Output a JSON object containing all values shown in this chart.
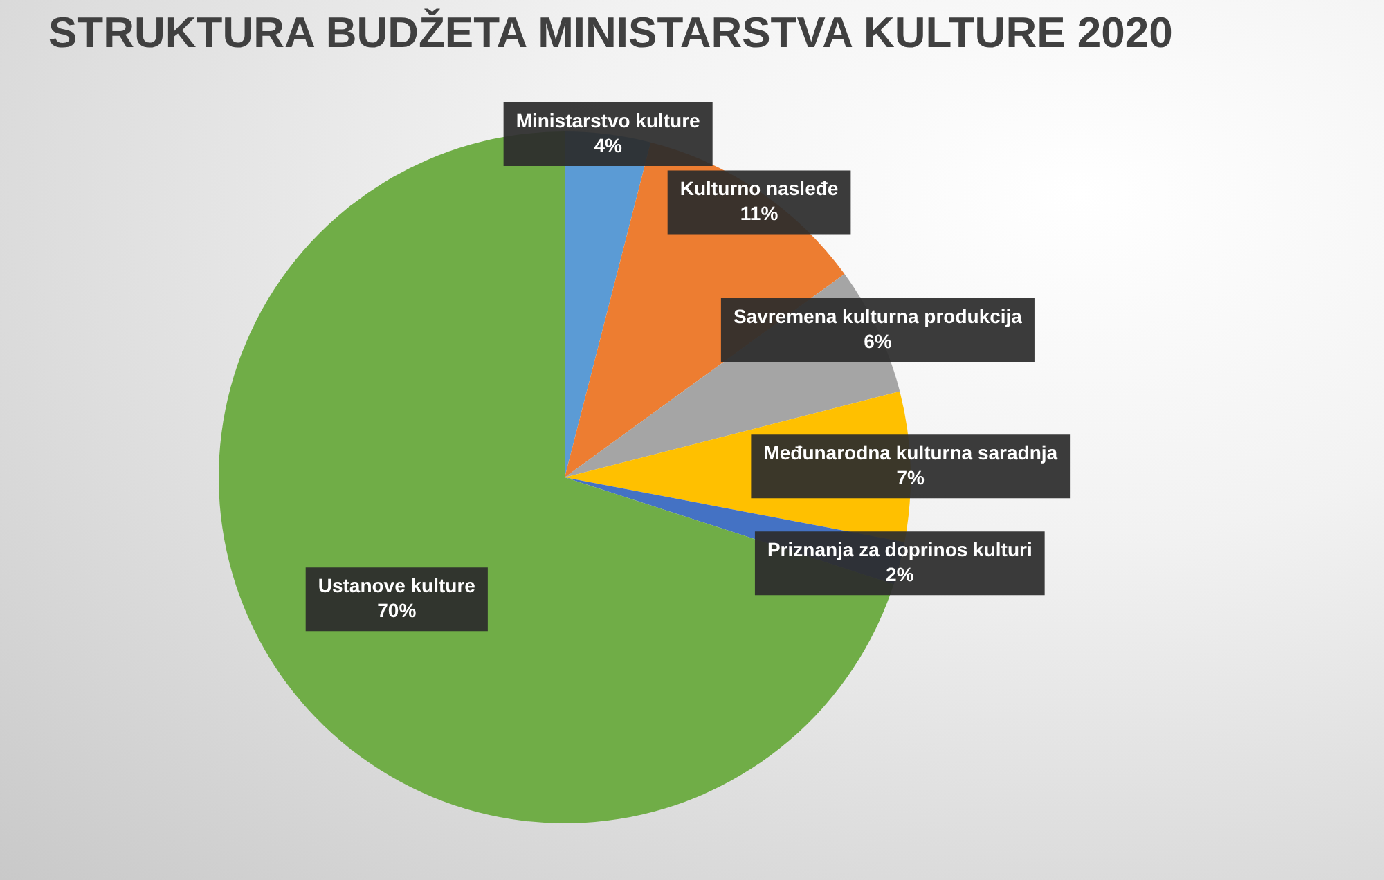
{
  "chart_data": {
    "type": "pie",
    "title": "STRUKTURA BUDŽETA MINISTARSTVA KULTURE 2020",
    "categories": [
      "Ministarstvo kulture",
      "Kulturno nasleđe",
      "Savremena kulturna produkcija",
      "Međunarodna kulturna saradnja",
      "Priznanja za doprinos kulturi",
      "Ustanove kulture"
    ],
    "values": [
      4,
      11,
      6,
      7,
      2,
      70
    ],
    "colors": [
      "#5b9bd5",
      "#ed7d31",
      "#a5a5a5",
      "#ffc000",
      "#4472c4",
      "#70ad47"
    ],
    "value_labels": [
      "4%",
      "11%",
      "6%",
      "7%",
      "2%",
      "70%"
    ],
    "legend": false
  }
}
